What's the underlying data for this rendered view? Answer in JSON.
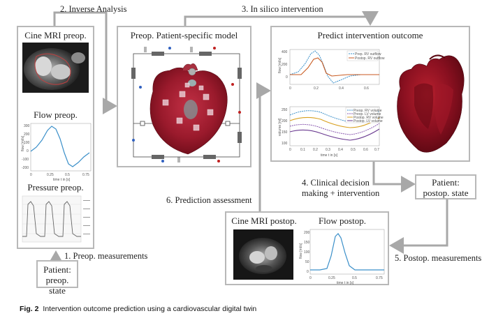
{
  "steps": {
    "inverse_analysis": "2. Inverse Analysis",
    "in_silico": "3. In silico intervention",
    "preop_measurements": "1. Preop. measurements",
    "clinical_decision_line1": "4. Clinical decision",
    "clinical_decision_line2": "making + intervention",
    "prediction_assessment": "6. Prediction assessment",
    "postop_measurements": "5. Postop. measurements"
  },
  "left_panel": {
    "cine_title": "Cine MRI preop.",
    "flow_title": "Flow preop.",
    "pressure_title": "Pressure preop.",
    "flow_ylabel": "flow [ml/s]",
    "flow_xlabel": "time t in [s]",
    "flow_yticks": [
      "300",
      "200",
      "100",
      "0",
      "-100",
      "-200"
    ],
    "flow_xticks": [
      "0",
      "0.25",
      "0.5",
      "0.75"
    ]
  },
  "model_panel": {
    "title": "Preop. Patient-specific model"
  },
  "predict_panel": {
    "title": "Predict intervention outcome",
    "top_chart": {
      "ylabel": "flow [ml/s]",
      "yticks": [
        "400",
        "200",
        "0"
      ],
      "xticks": [
        "0",
        "0.2",
        "0.4",
        "0.6"
      ],
      "legend": [
        "Prep. RV outflow",
        "Postop. RV outflow"
      ]
    },
    "bottom_chart": {
      "ylabel": "volume [ml]",
      "xlabel": "time t in [s]",
      "yticks": [
        "250",
        "200",
        "150",
        "100"
      ],
      "xticks": [
        "0",
        "0.1",
        "0.2",
        "0.3",
        "0.4",
        "0.5",
        "0.6",
        "0.7"
      ],
      "legend": [
        "Preop. RV volume",
        "Preop. LV volume",
        "Postop. RV volume",
        "Postop. LV volume"
      ]
    }
  },
  "patient_preop": {
    "line1": "Patient:",
    "line2": "preop. state"
  },
  "patient_postop": {
    "line1": "Patient:",
    "line2": "postop. state"
  },
  "postop_panel": {
    "cine_title": "Cine MRI postop.",
    "flow_title": "Flow postop.",
    "flow_ylabel": "flow [ml/s]",
    "flow_xlabel": "time t in [s]",
    "flow_yticks": [
      "200",
      "150",
      "100",
      "50",
      "0"
    ],
    "flow_xticks": [
      "0",
      "0.25",
      "0.5",
      "0.75"
    ]
  },
  "caption": {
    "label": "Fig. 2",
    "text": "Intervention outcome prediction using a cardiovascular digital twin"
  },
  "colors": {
    "arrow": "#a8a8a8",
    "heart": "#8a1020",
    "flow_line": "#3a8fc9",
    "postop_outflow": "#c85a20",
    "preop_lv": "#8a5ab0",
    "postop_rv": "#d8a020"
  }
}
